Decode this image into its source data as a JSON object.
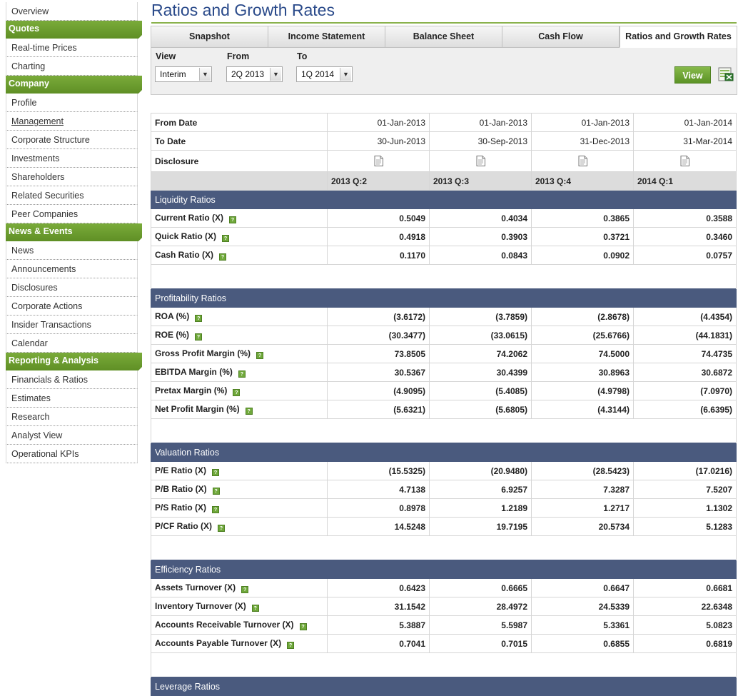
{
  "sidebar": {
    "items": [
      {
        "type": "item",
        "label": "Overview"
      },
      {
        "type": "head",
        "label": "Quotes"
      },
      {
        "type": "item",
        "label": "Real-time Prices"
      },
      {
        "type": "item",
        "label": "Charting"
      },
      {
        "type": "head",
        "label": "Company"
      },
      {
        "type": "item",
        "label": "Profile"
      },
      {
        "type": "item",
        "label": "Management",
        "underline": true
      },
      {
        "type": "item",
        "label": "Corporate Structure"
      },
      {
        "type": "item",
        "label": "Investments"
      },
      {
        "type": "item",
        "label": "Shareholders"
      },
      {
        "type": "item",
        "label": "Related Securities"
      },
      {
        "type": "item",
        "label": "Peer Companies"
      },
      {
        "type": "head",
        "label": "News & Events"
      },
      {
        "type": "item",
        "label": "News"
      },
      {
        "type": "item",
        "label": "Announcements"
      },
      {
        "type": "item",
        "label": "Disclosures"
      },
      {
        "type": "item",
        "label": "Corporate Actions"
      },
      {
        "type": "item",
        "label": "Insider Transactions"
      },
      {
        "type": "item",
        "label": "Calendar"
      },
      {
        "type": "head",
        "label": "Reporting & Analysis"
      },
      {
        "type": "item",
        "label": "Financials & Ratios"
      },
      {
        "type": "item",
        "label": "Estimates"
      },
      {
        "type": "item",
        "label": "Research"
      },
      {
        "type": "item",
        "label": "Analyst View"
      },
      {
        "type": "item",
        "label": "Operational KPIs"
      }
    ]
  },
  "page": {
    "title": "Ratios and Growth Rates"
  },
  "tabs": [
    {
      "label": "Snapshot",
      "active": false
    },
    {
      "label": "Income Statement",
      "active": false
    },
    {
      "label": "Balance Sheet",
      "active": false
    },
    {
      "label": "Cash Flow",
      "active": false
    },
    {
      "label": "Ratios and Growth Rates",
      "active": true
    }
  ],
  "controls": {
    "view_label": "View",
    "view_value": "Interim",
    "from_label": "From",
    "from_value": "2Q 2013",
    "to_label": "To",
    "to_value": "1Q 2014",
    "view_button": "View",
    "export_icon": "excel-export-icon"
  },
  "table": {
    "from_date_label": "From Date",
    "from_dates": [
      "01-Jan-2013",
      "01-Jan-2013",
      "01-Jan-2013",
      "01-Jan-2014"
    ],
    "to_date_label": "To Date",
    "to_dates": [
      "30-Jun-2013",
      "30-Sep-2013",
      "31-Dec-2013",
      "31-Mar-2014"
    ],
    "disclosure_label": "Disclosure",
    "periods": [
      "2013 Q:2",
      "2013 Q:3",
      "2013 Q:4",
      "2014 Q:1"
    ],
    "sections": [
      {
        "title": "Liquidity Ratios",
        "rows": [
          {
            "label": "Current Ratio (X)",
            "values": [
              "0.5049",
              "0.4034",
              "0.3865",
              "0.3588"
            ]
          },
          {
            "label": "Quick Ratio (X)",
            "values": [
              "0.4918",
              "0.3903",
              "0.3721",
              "0.3460"
            ]
          },
          {
            "label": "Cash Ratio (X)",
            "values": [
              "0.1170",
              "0.0843",
              "0.0902",
              "0.0757"
            ]
          }
        ]
      },
      {
        "title": "Profitability Ratios",
        "rows": [
          {
            "label": "ROA (%)",
            "values": [
              "(3.6172)",
              "(3.7859)",
              "(2.8678)",
              "(4.4354)"
            ]
          },
          {
            "label": "ROE (%)",
            "values": [
              "(30.3477)",
              "(33.0615)",
              "(25.6766)",
              "(44.1831)"
            ]
          },
          {
            "label": "Gross Profit Margin (%)",
            "values": [
              "73.8505",
              "74.2062",
              "74.5000",
              "74.4735"
            ]
          },
          {
            "label": "EBITDA Margin (%)",
            "values": [
              "30.5367",
              "30.4399",
              "30.8963",
              "30.6872"
            ]
          },
          {
            "label": "Pretax Margin (%)",
            "values": [
              "(4.9095)",
              "(5.4085)",
              "(4.9798)",
              "(7.0970)"
            ]
          },
          {
            "label": "Net Profit Margin (%)",
            "values": [
              "(5.6321)",
              "(5.6805)",
              "(4.3144)",
              "(6.6395)"
            ]
          }
        ]
      },
      {
        "title": "Valuation Ratios",
        "rows": [
          {
            "label": "P/E Ratio (X)",
            "values": [
              "(15.5325)",
              "(20.9480)",
              "(28.5423)",
              "(17.0216)"
            ]
          },
          {
            "label": "P/B Ratio (X)",
            "values": [
              "4.7138",
              "6.9257",
              "7.3287",
              "7.5207"
            ]
          },
          {
            "label": "P/S Ratio (X)",
            "values": [
              "0.8978",
              "1.2189",
              "1.2717",
              "1.1302"
            ]
          },
          {
            "label": "P/CF Ratio (X)",
            "values": [
              "14.5248",
              "19.7195",
              "20.5734",
              "5.1283"
            ]
          }
        ]
      },
      {
        "title": "Efficiency Ratios",
        "rows": [
          {
            "label": "Assets Turnover (X)",
            "values": [
              "0.6423",
              "0.6665",
              "0.6647",
              "0.6681"
            ]
          },
          {
            "label": "Inventory Turnover (X)",
            "values": [
              "31.1542",
              "28.4972",
              "24.5339",
              "22.6348"
            ]
          },
          {
            "label": "Accounts Receivable Turnover (X)",
            "values": [
              "5.3887",
              "5.5987",
              "5.3361",
              "5.0823"
            ]
          },
          {
            "label": "Accounts Payable Turnover (X)",
            "values": [
              "0.7041",
              "0.7015",
              "0.6855",
              "0.6819"
            ]
          }
        ]
      },
      {
        "title": "Leverage Ratios",
        "rows": []
      }
    ]
  },
  "icons": {
    "help": "help-icon",
    "disclosure": "document-icon"
  },
  "colors": {
    "accent_green": "#6a9e30",
    "section_bar": "#4a5a7e",
    "title_blue": "#2a4a8a"
  }
}
